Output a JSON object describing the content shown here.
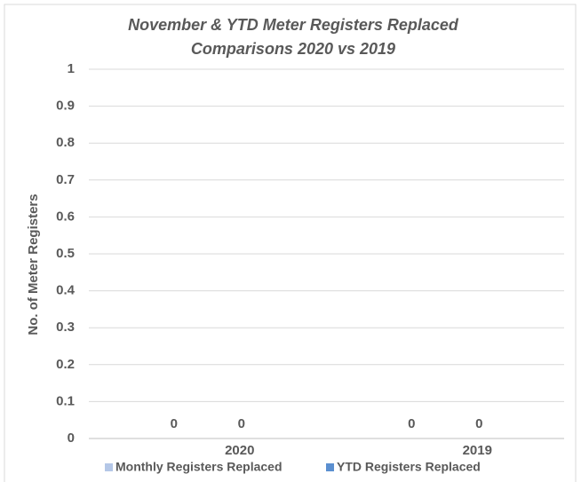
{
  "chart_data": {
    "type": "bar",
    "title": [
      "November & YTD  Meter Registers Replaced",
      "Comparisons 2020 vs 2019"
    ],
    "y_label": "No. of Meter Registers",
    "categories": [
      "2020",
      "2019"
    ],
    "series": [
      {
        "name": "Monthly Registers Replaced",
        "color": "#b4c7e7",
        "values": [
          0,
          0
        ]
      },
      {
        "name": "YTD Registers Replaced",
        "color": "#5b8fd0",
        "values": [
          0,
          0
        ]
      }
    ],
    "ylim": [
      0,
      1
    ],
    "yticks": [
      0,
      0.1,
      0.2,
      0.3,
      0.4,
      0.5,
      0.6,
      0.7,
      0.8,
      0.9,
      1
    ],
    "grid": true,
    "legend": "bottom"
  }
}
